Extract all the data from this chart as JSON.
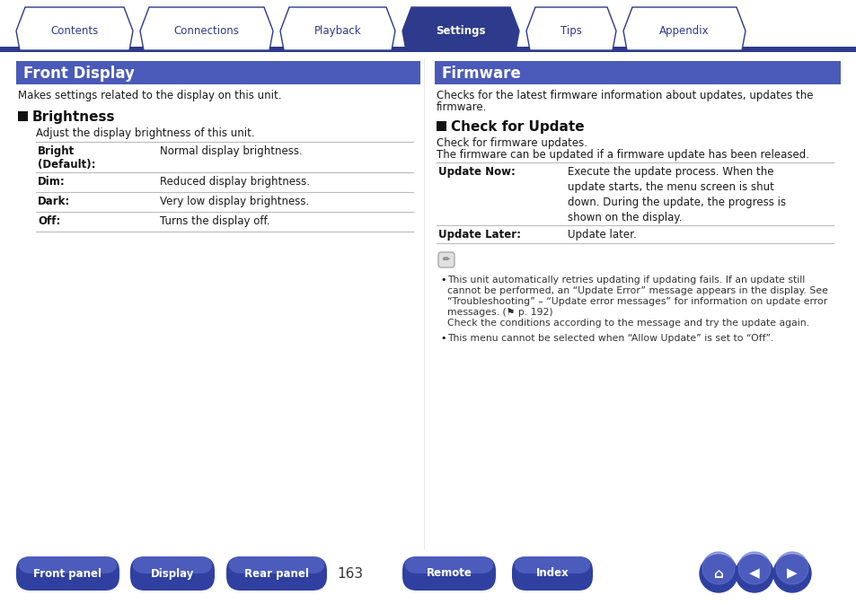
{
  "bg_color": "#ffffff",
  "tab_active_bg": "#2e3a8c",
  "tab_inactive_bg": "#ffffff",
  "tab_border_color": "#2e3a8c",
  "tab_active_text": "#ffffff",
  "tab_inactive_text": "#2e3a8c",
  "tabs": [
    "Contents",
    "Connections",
    "Playback",
    "Settings",
    "Tips",
    "Appendix"
  ],
  "active_tab": 3,
  "header_bar_color": "#2e3a8c",
  "section_header_bg": "#4a5ab8",
  "left_title": "Front Display",
  "right_title": "Firmware",
  "left_subtitle": "Makes settings related to the display on this unit.",
  "right_subtitle_l1": "Checks for the latest firmware information about updates, updates the",
  "right_subtitle_l2": "firmware.",
  "left_section": "Brightness",
  "right_section": "Check for Update",
  "left_section_desc": "Adjust the display brightness of this unit.",
  "right_section_desc1": "Check for firmware updates.",
  "right_section_desc2": "The firmware can be updated if a firmware update has been released.",
  "brightness_rows": [
    [
      "Bright\n(Default):",
      "Normal display brightness."
    ],
    [
      "Dim:",
      "Reduced display brightness."
    ],
    [
      "Dark:",
      "Very low display brightness."
    ],
    [
      "Off:",
      "Turns the display off."
    ]
  ],
  "update_now_text": "Execute the update process. When the\nupdate starts, the menu screen is shut\ndown. During the update, the progress is\nshown on the display.",
  "note_bullet1_l1": "This unit automatically retries updating if updating fails. If an update still",
  "note_bullet1_l2": "cannot be performed, an “Update Error” message appears in the display. See",
  "note_bullet1_l3": "“Troubleshooting” – “Update error messages” for information on update error",
  "note_bullet1_l4": "messages. (⚑ p. 192)",
  "note_bullet1_l5": "Check the conditions according to the message and try the update again.",
  "note_bullet2": "This menu cannot be selected when “Allow Update” is set to “Off”.",
  "bottom_buttons": [
    "Front panel",
    "Display",
    "Rear panel",
    "Remote",
    "Index"
  ],
  "page_number": "163",
  "button_color_dark": "#3040a0",
  "button_color_light": "#6070d0",
  "text_color": "#1a1a1a",
  "line_color": "#bbbbbb",
  "tab_line_color": "#2e3a8c"
}
